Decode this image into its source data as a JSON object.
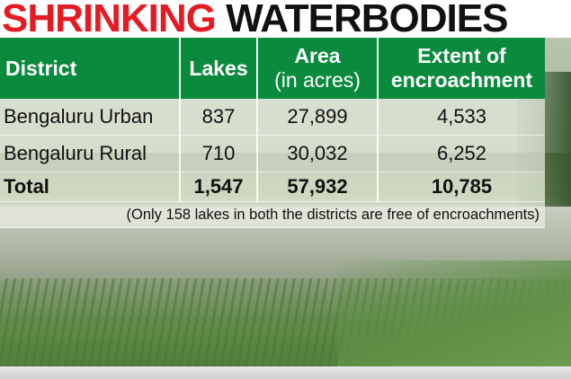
{
  "headline": {
    "part1": "SHRINKING",
    "part2": "WATERBODIES"
  },
  "colors": {
    "headline_red": "#e41b23",
    "header_green": "#0a8a3c"
  },
  "chart_data": {
    "type": "table",
    "columns": [
      {
        "line1": "District",
        "line2": ""
      },
      {
        "line1": "Lakes",
        "line2": ""
      },
      {
        "line1": "Area",
        "line2": "(in acres)"
      },
      {
        "line1": "Extent of",
        "line2": "encroachment"
      }
    ],
    "rows": [
      {
        "district": "Bengaluru Urban",
        "lakes": "837",
        "area": "27,899",
        "encroachment": "4,533"
      },
      {
        "district": "Bengaluru Rural",
        "lakes": "710",
        "area": "30,032",
        "encroachment": "6,252"
      }
    ],
    "total": {
      "label": "Total",
      "lakes": "1,547",
      "area": "57,932",
      "encroachment": "10,785"
    },
    "note": "(Only 158 lakes in both the districts are free of encroachments)"
  }
}
